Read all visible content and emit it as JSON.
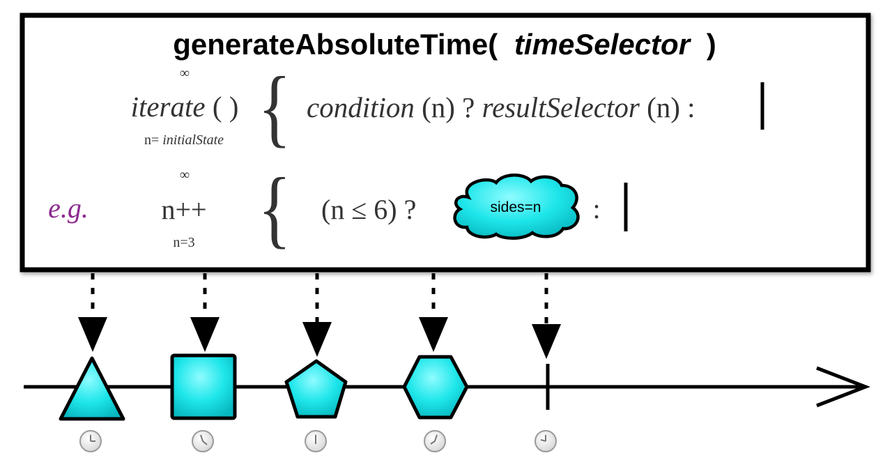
{
  "title": {
    "prefix": "generateAbsoluteTime(",
    "param": "timeSelector",
    "suffix": ")"
  },
  "general": {
    "infinity": "∞",
    "iterate": "iterate",
    "iterate_parens": "( )",
    "init_prefix": "n=",
    "init_value": "initialState",
    "brace": "{",
    "condition": "condition",
    "condition_arg": "(n) ? ",
    "result_selector": "resultSelector",
    "result_arg": "(n) :"
  },
  "example": {
    "label": "e.g.",
    "infinity": "∞",
    "increment": "n++",
    "init": "n=3",
    "brace": "{",
    "condition": "(n ≤ 6) ?",
    "cloud_label": "sides=n",
    "colon": ":"
  },
  "timeline": {
    "emissions": [
      {
        "shape": "triangle",
        "sides": 3,
        "clock": "clock-icon"
      },
      {
        "shape": "square",
        "sides": 4,
        "clock": "clock-icon"
      },
      {
        "shape": "pentagon",
        "sides": 5,
        "clock": "clock-icon"
      },
      {
        "shape": "hexagon",
        "sides": 6,
        "clock": "clock-icon"
      }
    ],
    "completion": {
      "clock": "clock-icon"
    }
  },
  "colors": {
    "shape_fill": "#1ee6ea",
    "shape_stroke": "#000000",
    "eg_label": "#8b2a8f",
    "formula_text": "#333333",
    "clock_fill": "#ececec",
    "clock_stroke": "#9a9a9a"
  }
}
